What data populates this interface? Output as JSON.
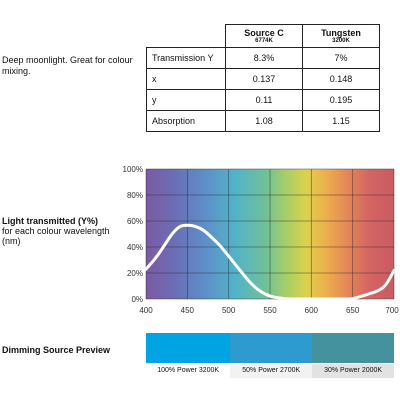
{
  "description": "Deep moonlight. Great for colour mixing.",
  "sources": [
    {
      "name": "Source C",
      "temp": "6774K"
    },
    {
      "name": "Tungsten",
      "temp": "3200K"
    }
  ],
  "table_rows": [
    {
      "label": "Transmission Y",
      "values": [
        "8.3%",
        "7%"
      ]
    },
    {
      "label": "x",
      "values": [
        "0.137",
        "0.148"
      ]
    },
    {
      "label": "y",
      "values": [
        "0.11",
        "0.195"
      ]
    },
    {
      "label": "Absorption",
      "values": [
        "1.08",
        "1.15"
      ]
    }
  ],
  "chart_label": {
    "title": "Light transmitted (Y%)",
    "subtitle": "for each colour wavelength (nm)"
  },
  "chart_data": {
    "type": "line",
    "title": "Light transmitted (Y%)",
    "xlabel": "for each colour wavelength (nm)",
    "ylabel": "",
    "xlim": [
      400,
      700
    ],
    "ylim": [
      0,
      100
    ],
    "x_ticks": [
      "400",
      "450",
      "500",
      "550",
      "600",
      "650",
      "700"
    ],
    "y_ticks": [
      "0%",
      "20%",
      "40%",
      "60%",
      "80%",
      "100%"
    ],
    "grid": true,
    "series": [
      {
        "color": "#ffffff",
        "x": [
          400,
          410,
          420,
          430,
          440,
          450,
          460,
          470,
          480,
          490,
          500,
          510,
          520,
          530,
          540,
          550,
          560,
          570,
          580,
          590,
          600,
          620,
          640,
          650,
          660,
          670,
          680,
          690,
          700
        ],
        "y": [
          23,
          30,
          39,
          49,
          56,
          57,
          56,
          53,
          47,
          41,
          33,
          25,
          17,
          10,
          5,
          2,
          1,
          0,
          0,
          0,
          0,
          0,
          0,
          0,
          2,
          4,
          6,
          10,
          22
        ]
      }
    ]
  },
  "dimming": {
    "title": "Dimming Source Preview",
    "segments": [
      {
        "label": "100% Power 3200K",
        "color": "#00a4e2",
        "fraction": 0.34
      },
      {
        "label": "50% Power 2700K",
        "color": "#2d9bcf",
        "fraction": 0.33
      },
      {
        "label": "30% Power 2000K",
        "color": "#44929e",
        "fraction": 0.33
      }
    ]
  }
}
